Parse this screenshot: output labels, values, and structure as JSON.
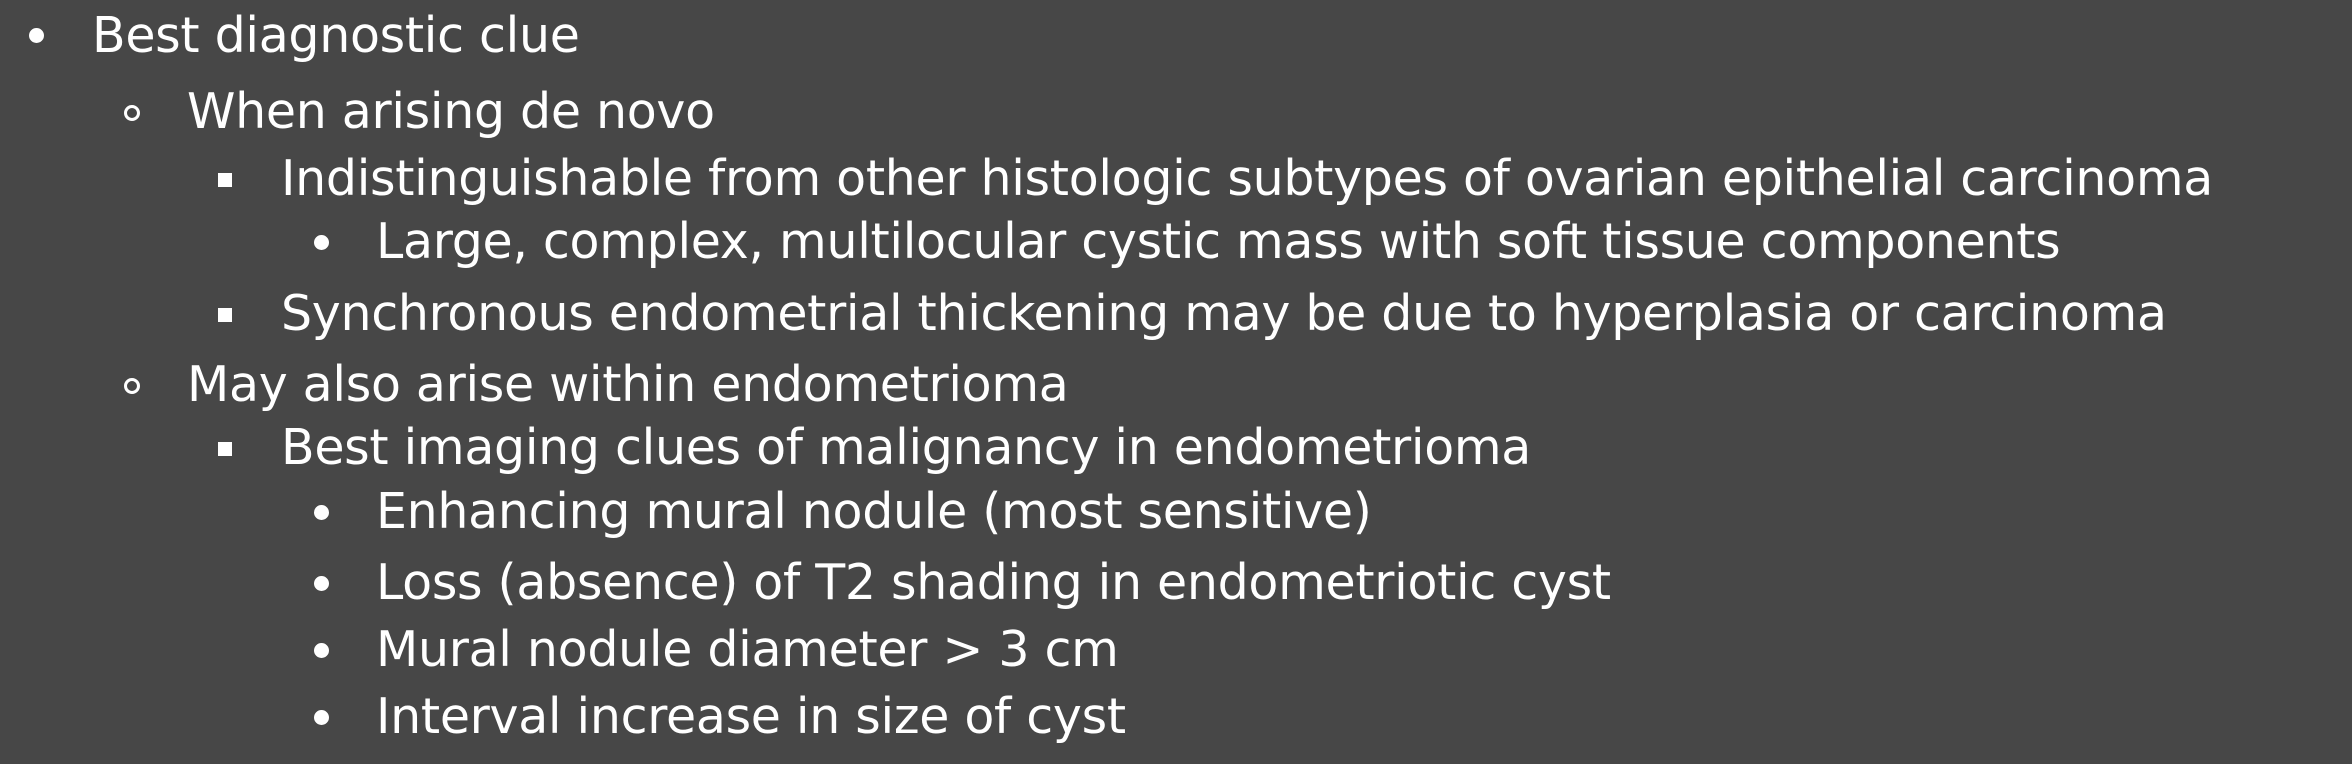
{
  "outline": {
    "items": [
      {
        "level": 1,
        "marker": "disc-icon",
        "text": "Best diagnostic clue"
      },
      {
        "level": 2,
        "marker": "circle-icon",
        "text": "When arising de novo"
      },
      {
        "level": 3,
        "marker": "square-icon",
        "text": "Indistinguishable from other histologic subtypes of ovarian epithelial carcinoma"
      },
      {
        "level": 4,
        "marker": "disc-icon",
        "text": "Large, complex, multilocular cystic mass with soft tissue components"
      },
      {
        "level": 3,
        "marker": "square-icon",
        "text": "Synchronous endometrial thickening may be due to hyperplasia or carcinoma"
      },
      {
        "level": 2,
        "marker": "circle-icon",
        "text": "May also arise within endometrioma"
      },
      {
        "level": 3,
        "marker": "square-icon",
        "text": "Best imaging clues of malignancy in endometrioma"
      },
      {
        "level": 4,
        "marker": "disc-icon",
        "text": "Enhancing mural nodule (most sensitive)"
      },
      {
        "level": 4,
        "marker": "disc-icon",
        "text": "Loss (absence) of T2 shading in endometriotic cyst"
      },
      {
        "level": 4,
        "marker": "disc-icon",
        "text": "Mural nodule diameter > 3 cm"
      },
      {
        "level": 4,
        "marker": "disc-icon",
        "text": "Interval increase in size of cyst"
      }
    ]
  }
}
